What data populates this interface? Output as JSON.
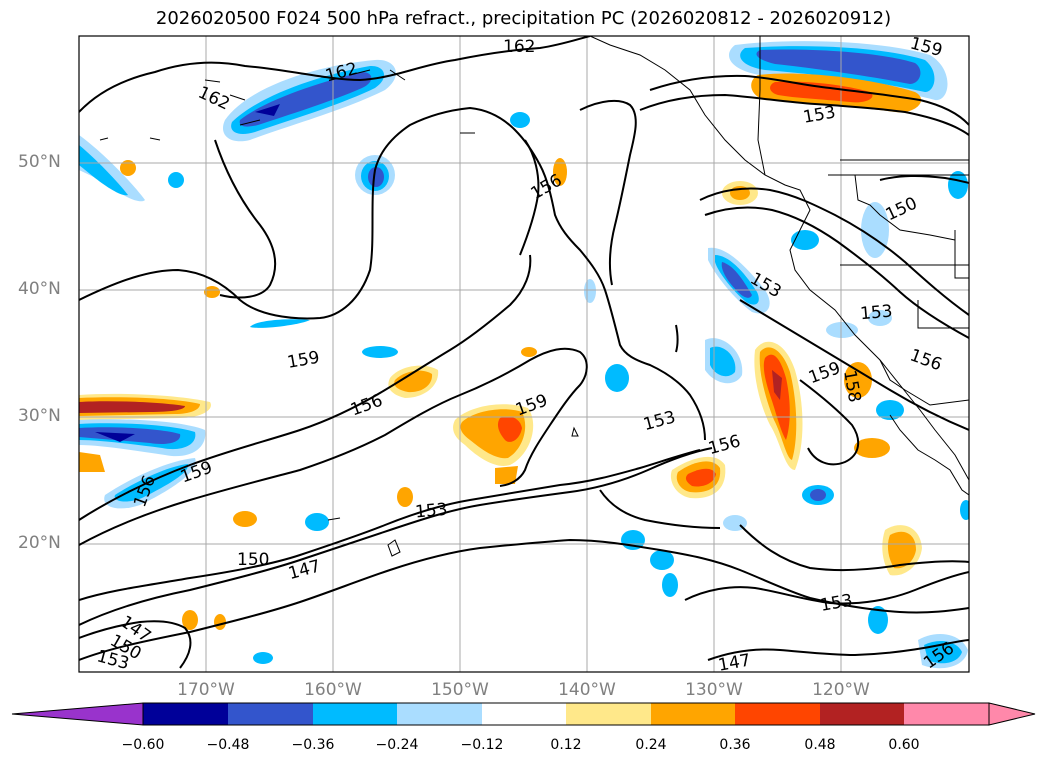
{
  "title": "2026020500 F024 500 hPa refract., precipitation PC (2026020812 - 2026020912)",
  "lat_labels": [
    "50°N",
    "40°N",
    "30°N",
    "20°N"
  ],
  "lon_labels": [
    "170°W",
    "160°W",
    "150°W",
    "140°W",
    "130°W",
    "120°W"
  ],
  "contour_labels": [
    "162",
    "162",
    "162",
    "159",
    "156",
    "150",
    "153",
    "153",
    "156",
    "159",
    "156",
    "153",
    "159",
    "153",
    "156",
    "159",
    "153",
    "150",
    "147",
    "147",
    "150",
    "153",
    "147",
    "153",
    "156",
    "159",
    "156",
    "158"
  ],
  "colorbar": {
    "ticks": [
      "−0.60",
      "−0.48",
      "−0.36",
      "−0.24",
      "−0.12",
      "0.12",
      "0.24",
      "0.36",
      "0.48",
      "0.60"
    ],
    "colors": [
      "#9933cc",
      "#000099",
      "#3355cc",
      "#00bbff",
      "#aaddff",
      "#ffffff",
      "#ffe88a",
      "#ffa500",
      "#ff4500",
      "#b22222",
      "#ff88aa"
    ]
  }
}
